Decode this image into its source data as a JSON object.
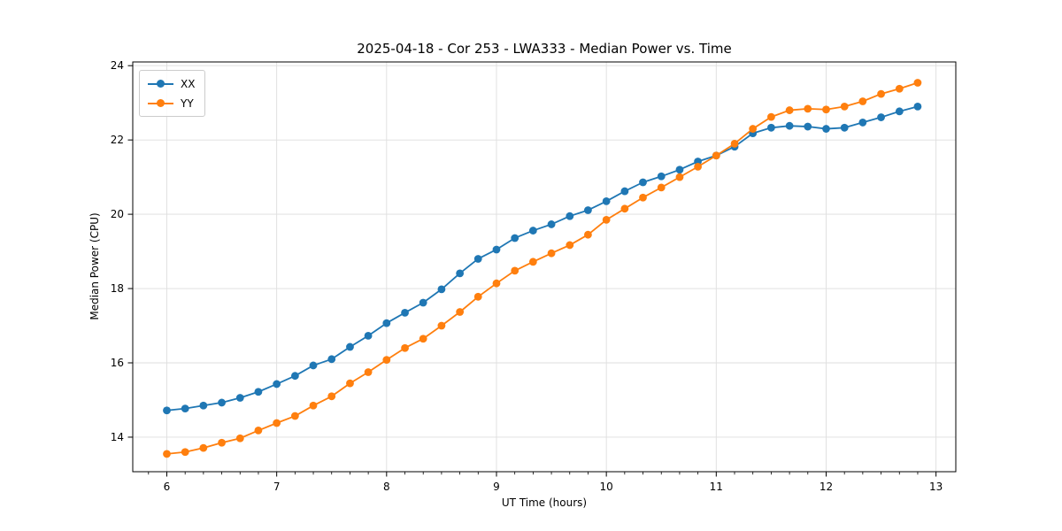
{
  "chart_data": {
    "type": "line",
    "title": "2025-04-18 - Cor 253 - LWA333 - Median Power vs. Time",
    "xlabel": "UT Time (hours)",
    "ylabel": "Median Power (CPU)",
    "xlim": [
      5.69,
      13.18
    ],
    "ylim": [
      13.07,
      24.1
    ],
    "x_ticks": [
      6,
      7,
      8,
      9,
      10,
      11,
      12,
      13
    ],
    "x_minor_tick_step": 0.1667,
    "y_ticks": [
      14,
      16,
      18,
      20,
      22,
      24
    ],
    "grid": true,
    "legend_position": "upper left",
    "x": [
      6.0,
      6.167,
      6.333,
      6.5,
      6.667,
      6.833,
      7.0,
      7.167,
      7.333,
      7.5,
      7.667,
      7.833,
      8.0,
      8.167,
      8.333,
      8.5,
      8.667,
      8.833,
      9.0,
      9.167,
      9.333,
      9.5,
      9.667,
      9.833,
      10.0,
      10.167,
      10.333,
      10.5,
      10.667,
      10.833,
      11.0,
      11.167,
      11.333,
      11.5,
      11.667,
      11.833,
      12.0,
      12.167,
      12.333,
      12.5,
      12.667,
      12.833
    ],
    "series": [
      {
        "name": "XX",
        "color": "#1f77b4",
        "marker": "circle",
        "values": [
          14.72,
          14.77,
          14.85,
          14.93,
          15.06,
          15.22,
          15.43,
          15.65,
          15.93,
          16.1,
          16.43,
          16.73,
          17.07,
          17.35,
          17.62,
          17.98,
          18.41,
          18.8,
          19.05,
          19.36,
          19.56,
          19.73,
          19.95,
          20.11,
          20.35,
          20.62,
          20.86,
          21.02,
          21.2,
          21.42,
          21.58,
          21.82,
          22.18,
          22.33,
          22.38,
          22.36,
          22.3,
          22.33,
          22.47,
          22.61,
          22.77,
          22.9
        ]
      },
      {
        "name": "YY",
        "color": "#ff7f0e",
        "marker": "circle",
        "values": [
          13.55,
          13.6,
          13.71,
          13.85,
          13.97,
          14.18,
          14.38,
          14.57,
          14.85,
          15.1,
          15.45,
          15.75,
          16.08,
          16.4,
          16.65,
          17.0,
          17.37,
          17.78,
          18.14,
          18.48,
          18.72,
          18.95,
          19.17,
          19.45,
          19.85,
          20.15,
          20.45,
          20.72,
          21.0,
          21.28,
          21.58,
          21.9,
          22.3,
          22.62,
          22.8,
          22.84,
          22.82,
          22.9,
          23.04,
          23.24,
          23.38,
          23.54
        ]
      }
    ]
  }
}
